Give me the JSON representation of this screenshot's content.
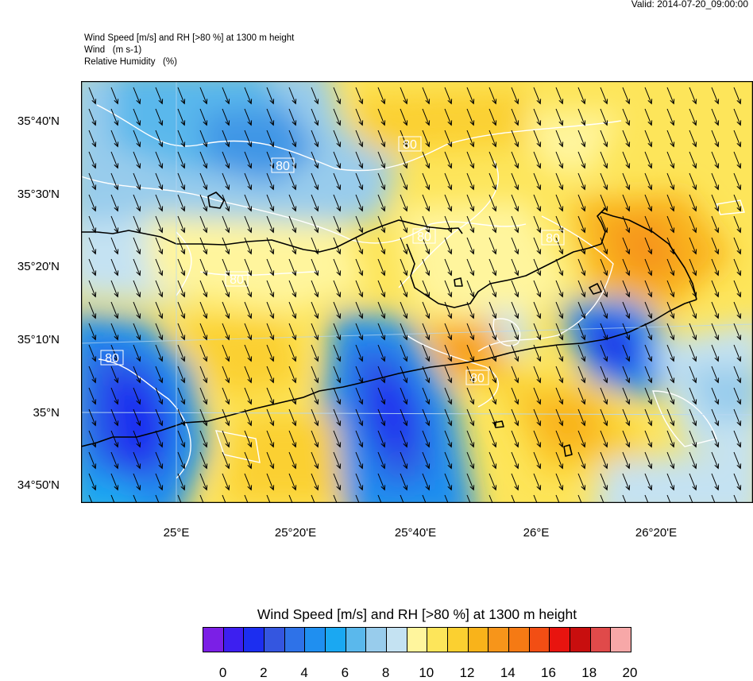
{
  "valid_label": "Valid: 2014-07-20_09:00:00",
  "header_lines": [
    "Wind Speed [m/s] and RH [>80 %] at 1300 m height",
    "Wind   (m s-1)",
    "Relative Humidity   (%)"
  ],
  "y_ticks": [
    "35°40'N",
    "35°30'N",
    "35°20'N",
    "35°10'N",
    "35°N",
    "34°50'N"
  ],
  "x_ticks": [
    "25°E",
    "25°20'E",
    "25°40'E",
    "26°E",
    "26°20'E"
  ],
  "contour_label": "80",
  "colorbar": {
    "title": "Wind Speed [m/s] and RH [>80 %] at 1300 m height",
    "labels": [
      "0",
      "2",
      "4",
      "6",
      "8",
      "10",
      "12",
      "14",
      "16",
      "18",
      "20"
    ],
    "colors": [
      "#7b1fe6",
      "#3d1ff0",
      "#1c2ef0",
      "#3456e0",
      "#2e72e8",
      "#1f8ff0",
      "#1aa8f2",
      "#5ab8ec",
      "#98ccec",
      "#c4e2f2",
      "#fff59d",
      "#fde55a",
      "#fbd030",
      "#f9b31a",
      "#f7951a",
      "#f57a14",
      "#f24e14",
      "#e8140f",
      "#c80e0e",
      "#e04a4a",
      "#f7a8a8"
    ]
  },
  "colors": {
    "land_outline": "#000000",
    "rh_contour": "#ffffff"
  }
}
